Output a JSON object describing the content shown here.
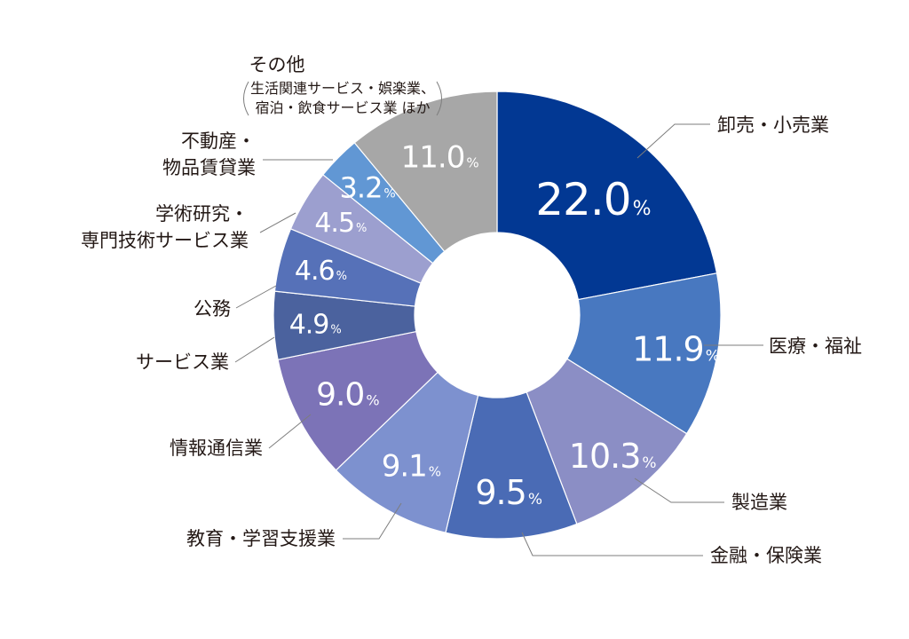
{
  "chart_data": {
    "type": "pie",
    "unit": "%",
    "categories": [
      {
        "label": "卸売・小売業",
        "value": 22.0,
        "value_text": "22.0",
        "color": "#023893"
      },
      {
        "label": "医療・福祉",
        "value": 11.9,
        "value_text": "11.9",
        "color": "#4878c0"
      },
      {
        "label": "製造業",
        "value": 10.3,
        "value_text": "10.3",
        "color": "#8b8ec5"
      },
      {
        "label": "金融・保険業",
        "value": 9.5,
        "value_text": "9.5",
        "color": "#4a6bb5"
      },
      {
        "label": "教育・学習支援業",
        "value": 9.1,
        "value_text": "9.1",
        "color": "#7d91cf"
      },
      {
        "label": "情報通信業",
        "value": 9.0,
        "value_text": "9.0",
        "color": "#7c73b7"
      },
      {
        "label": "サービス業",
        "value": 4.9,
        "value_text": "4.9",
        "color": "#4b629e"
      },
      {
        "label": "公務",
        "value": 4.6,
        "value_text": "4.6",
        "color": "#5671b8"
      },
      {
        "label": "学術研究・\n専門技術サービス業",
        "value": 4.5,
        "value_text": "4.5",
        "color": "#9c9fcf"
      },
      {
        "label": "不動産・\n物品賃貸業",
        "value": 3.2,
        "value_text": "3.2",
        "color": "#6197d4"
      },
      {
        "label": "その他",
        "note": "生活関連サービス・娯楽業、\n宿泊・飲食サービス業 ほか",
        "value": 11.0,
        "value_text": "11.0",
        "color": "#a7a7a7"
      }
    ]
  }
}
